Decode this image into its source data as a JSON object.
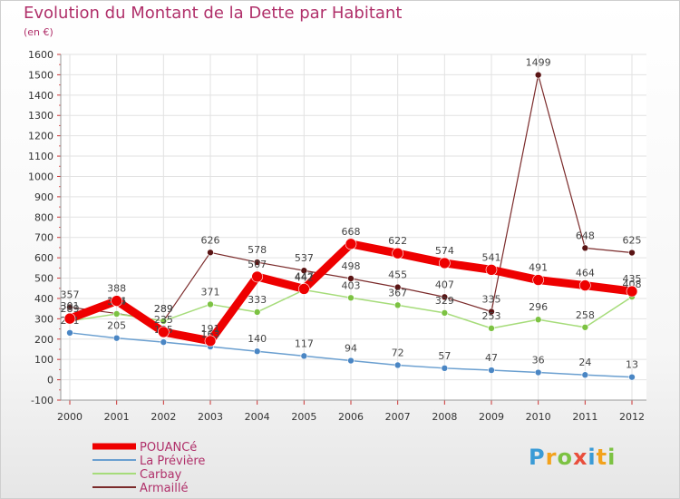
{
  "title": "Evolution du Montant de la Dette par Habitant",
  "subtitle": "(en €)",
  "logo": {
    "text": "Proxiti",
    "colors": [
      "#3a9bd6",
      "#f3a21c",
      "#7cc242",
      "#e94e3c"
    ]
  },
  "chart_data": {
    "type": "line",
    "title": "Evolution du Montant de la Dette par Habitant",
    "ylabel": "(en €)",
    "x": [
      "2000",
      "2001",
      "2002",
      "2003",
      "2004",
      "2005",
      "2006",
      "2007",
      "2008",
      "2009",
      "2010",
      "2011",
      "2012"
    ],
    "yticks": [
      -100,
      0,
      100,
      200,
      300,
      400,
      500,
      600,
      700,
      800,
      900,
      1000,
      1100,
      1200,
      1300,
      1400,
      1500,
      1600
    ],
    "ylim": [
      -100,
      1600
    ],
    "grid": true,
    "legend": "bottom-left",
    "series": [
      {
        "name": "Armaillé",
        "color": "#7b2b2b",
        "marker": "#5a1414",
        "width": 1.2,
        "values": [
          357,
          326,
          289,
          626,
          578,
          537,
          498,
          455,
          407,
          335,
          1499,
          648,
          625
        ]
      },
      {
        "name": "Carbay",
        "color": "#a6dc7a",
        "marker": "#7cc242",
        "width": 1.5,
        "values": [
          289,
          324,
          289,
          371,
          333,
          442,
          403,
          367,
          329,
          253,
          296,
          258,
          408
        ]
      },
      {
        "name": "La Prévière",
        "color": "#6a9fd0",
        "marker": "#4a86c4",
        "width": 1.5,
        "values": [
          231,
          205,
          185,
          163,
          140,
          117,
          94,
          72,
          57,
          47,
          36,
          24,
          13
        ]
      },
      {
        "name": "POUANCé",
        "color": "#ee0000",
        "marker": "#ee0000",
        "width": 9,
        "values": [
          301,
          388,
          235,
          191,
          507,
          447,
          668,
          622,
          574,
          541,
          491,
          464,
          435
        ]
      }
    ],
    "legend_order": [
      "POUANCé",
      "La Prévière",
      "Carbay",
      "Armaillé"
    ]
  }
}
